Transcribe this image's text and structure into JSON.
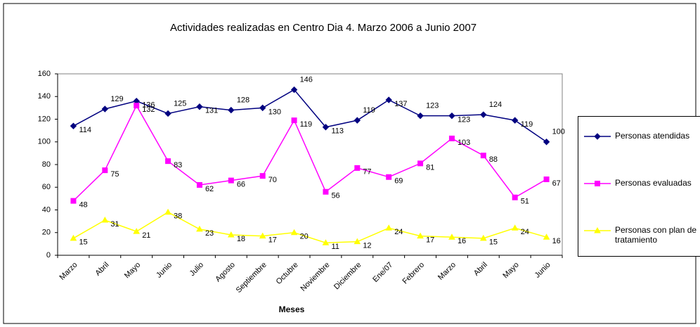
{
  "chart_data": {
    "type": "line",
    "title": "Actividades realizadas en Centro Dia 4. Marzo 2006 a Junio 2007",
    "x_label": "Meses",
    "categories": [
      "Marzo",
      "Abril",
      "Mayo",
      "Junio",
      "Julio",
      "Agosto",
      "Septiembre",
      "Octubre",
      "Noviembre",
      "Diciembre",
      "Ene/07",
      "Febrero",
      "Marzo",
      "Abril",
      "Mayo",
      "Junio"
    ],
    "series": [
      {
        "name": "Personas atendidas",
        "color": "#000080",
        "marker": "diamond",
        "values": [
          114,
          129,
          136,
          125,
          131,
          128,
          130,
          146,
          113,
          119,
          137,
          123,
          123,
          124,
          119,
          100
        ]
      },
      {
        "name": "Personas evaluadas",
        "color": "#ff00ff",
        "marker": "square",
        "values": [
          48,
          75,
          132,
          83,
          62,
          66,
          70,
          119,
          56,
          77,
          69,
          81,
          103,
          88,
          51,
          67
        ]
      },
      {
        "name": "Personas con plan de tratamiento",
        "color": "#ffff00",
        "marker": "triangle",
        "values": [
          15,
          31,
          21,
          38,
          23,
          18,
          17,
          20,
          11,
          12,
          24,
          17,
          16,
          15,
          24,
          16
        ]
      }
    ],
    "ylim": [
      0,
      160
    ],
    "yticks": [
      0,
      20,
      40,
      60,
      80,
      100,
      120,
      140,
      160
    ],
    "grid": false,
    "legend": "right"
  }
}
